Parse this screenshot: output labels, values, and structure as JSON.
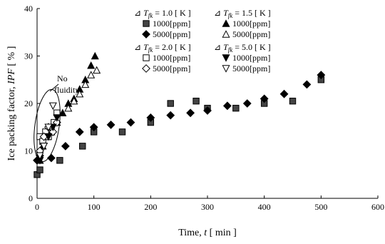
{
  "chart_data": {
    "type": "scatter",
    "xlabel": "Time, t [ min ]",
    "ylabel": "Ice packing factor, IPF [ % ]",
    "xlim": [
      0,
      600
    ],
    "ylim": [
      0,
      40
    ],
    "x_ticks": [
      0,
      100,
      200,
      300,
      400,
      500,
      600
    ],
    "y_ticks": [
      0,
      10,
      20,
      30,
      40
    ],
    "grid": false,
    "legend_position": "top-right",
    "annotation": "No fluidity",
    "legend_groups": [
      {
        "header": "⊿ T_fk = 1.0 [ K ]",
        "series_indices": [
          0,
          1
        ]
      },
      {
        "header": "⊿ T_fk = 1.5 [ K ]",
        "series_indices": [
          2,
          3
        ]
      },
      {
        "header": "⊿ T_fk = 2.0 [ K ]",
        "series_indices": [
          4,
          5
        ]
      },
      {
        "header": "⊿ T_fk = 5.0 [ K ]",
        "series_indices": [
          6,
          7
        ]
      }
    ],
    "series": [
      {
        "name": "1000[ppm]",
        "marker": "square-filled",
        "x": [
          0,
          5,
          40,
          80,
          100,
          150,
          200,
          235,
          280,
          300,
          350,
          400,
          450,
          500
        ],
        "y": [
          5,
          6,
          8,
          11,
          14,
          14,
          16,
          20,
          20.5,
          19,
          19,
          20,
          20.5,
          25
        ]
      },
      {
        "name": "5000[ppm]",
        "marker": "diamond-filled",
        "x": [
          0,
          5,
          25,
          50,
          75,
          100,
          130,
          165,
          200,
          235,
          270,
          300,
          335,
          370,
          400,
          435,
          475,
          500
        ],
        "y": [
          8,
          9,
          8.5,
          11,
          14,
          15,
          15.5,
          16,
          17,
          17.5,
          18,
          18.5,
          19.5,
          20,
          21,
          22,
          24,
          26
        ]
      },
      {
        "name": "1000[ppm]",
        "marker": "triangle-filled",
        "x": [
          5,
          10,
          18,
          25,
          35,
          45,
          55,
          65,
          75,
          85,
          95,
          102
        ],
        "y": [
          8,
          11,
          13,
          14,
          16,
          18,
          20,
          21,
          23,
          25,
          28,
          30
        ]
      },
      {
        "name": "5000[ppm]",
        "marker": "triangle-open",
        "x": [
          55,
          65,
          75,
          85,
          95,
          105
        ],
        "y": [
          19,
          20.5,
          22,
          24,
          26,
          27
        ]
      },
      {
        "name": "1000[ppm]",
        "marker": "square-open",
        "x": [
          5,
          10,
          15,
          20,
          25,
          30,
          35
        ],
        "y": [
          13,
          12,
          14,
          13,
          15,
          16,
          18
        ]
      },
      {
        "name": "5000[ppm]",
        "marker": "diamond-open",
        "x": [
          5,
          12,
          20,
          28,
          35
        ],
        "y": [
          10,
          13,
          15,
          14,
          16
        ]
      },
      {
        "name": "1000[ppm]",
        "marker": "triangle-down-filled",
        "x": [
          5,
          12,
          20,
          28,
          35
        ],
        "y": [
          8,
          11,
          13,
          15,
          17
        ]
      },
      {
        "name": "5000[ppm]",
        "marker": "triangle-down-open",
        "x": [
          5,
          12,
          20,
          28
        ],
        "y": [
          9,
          11,
          15,
          19.5
        ]
      }
    ]
  }
}
